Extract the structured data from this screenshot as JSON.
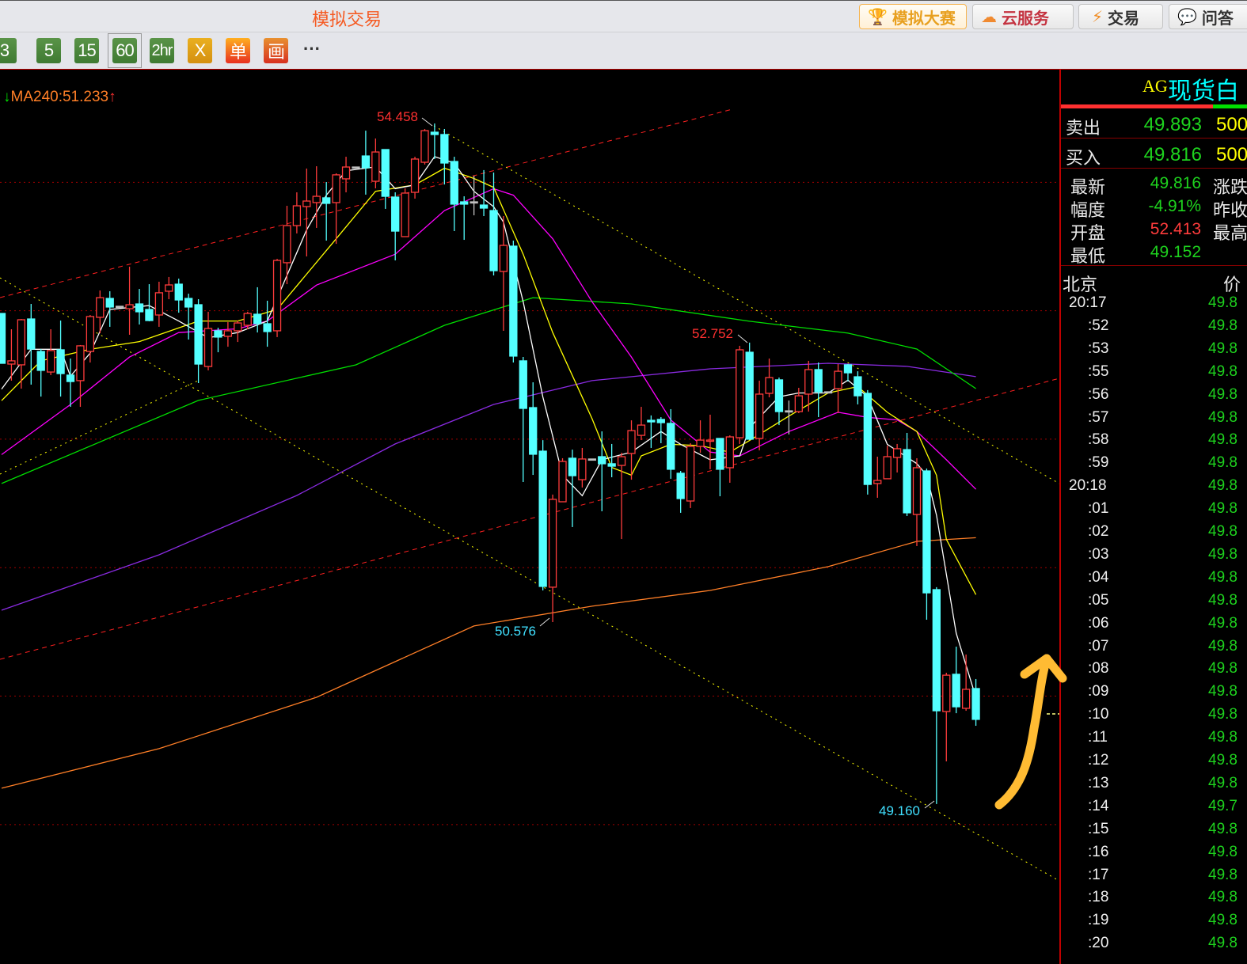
{
  "topbar": {
    "title": "模拟交易",
    "buttons": [
      {
        "label": "模拟大赛",
        "icon": "trophy-icon"
      },
      {
        "label": "云服务",
        "icon": "cloud-icon"
      },
      {
        "label": "交易",
        "icon": "lightning-icon"
      },
      {
        "label": "问答",
        "icon": "chat-icon"
      }
    ]
  },
  "toolbar": {
    "periods": [
      "3",
      "5",
      "15",
      "60",
      "2hr"
    ],
    "selected": "60",
    "tools": [
      "X",
      "单",
      "画"
    ],
    "more": "···"
  },
  "chart": {
    "ma_label": "MA240:51.233",
    "ma_down_arrow": "↓",
    "ma_up_arrow": "↑",
    "annotations": {
      "high": "54.458",
      "high2": "52.752",
      "low1": "50.576",
      "low2": "49.160"
    },
    "colors": {
      "up": "#ff3c3c",
      "down": "#54ffff",
      "ma5": "#ffffff",
      "ma10": "#ffff00",
      "ma20": "#ff00ff",
      "ma60": "#00e000",
      "ma120": "#8a2be2",
      "ma240": "#ff7f27"
    },
    "gridlines": [
      54,
      53,
      52,
      51,
      50,
      49
    ],
    "candles": [
      [
        52.979,
        52.979,
        52.591,
        52.591
      ],
      [
        52.585,
        52.856,
        52.456,
        52.61
      ],
      [
        52.579,
        52.936,
        52.394,
        52.93
      ],
      [
        52.936,
        53.053,
        52.425,
        52.702
      ],
      [
        52.683,
        52.702,
        52.332,
        52.536
      ],
      [
        52.523,
        52.856,
        52.499,
        52.69
      ],
      [
        52.696,
        52.924,
        52.332,
        52.511
      ],
      [
        52.499,
        52.628,
        52.252,
        52.449
      ],
      [
        52.456,
        52.733,
        52.252,
        52.727
      ],
      [
        52.683,
        52.967,
        52.597,
        52.955
      ],
      [
        52.949,
        53.158,
        52.825,
        53.102
      ],
      [
        53.096,
        53.152,
        52.875,
        53.029
      ],
      [
        53.035,
        53.035,
        53.035,
        53.035
      ],
      [
        53.016,
        53.343,
        52.813,
        53.047
      ],
      [
        53.053,
        53.17,
        52.893,
        52.992
      ],
      [
        53.01,
        53.207,
        52.918,
        52.924
      ],
      [
        52.967,
        53.226,
        52.875,
        53.14
      ],
      [
        53.152,
        53.263,
        53.09,
        53.201
      ],
      [
        53.207,
        53.25,
        52.985,
        53.084
      ],
      [
        53.096,
        53.133,
        52.776,
        53.029
      ],
      [
        53.047,
        53.09,
        52.437,
        52.585
      ],
      [
        52.566,
        52.992,
        52.536,
        52.862
      ],
      [
        52.844,
        52.868,
        52.677,
        52.795
      ],
      [
        52.801,
        52.912,
        52.72,
        52.844
      ],
      [
        52.844,
        52.924,
        52.757,
        52.905
      ],
      [
        52.887,
        52.992,
        52.856,
        52.979
      ],
      [
        52.973,
        53.183,
        52.831,
        52.899
      ],
      [
        52.899,
        53.078,
        52.72,
        52.838
      ],
      [
        52.844,
        53.404,
        52.795,
        53.392
      ],
      [
        53.374,
        53.817,
        53.207,
        53.663
      ],
      [
        53.663,
        53.922,
        53.602,
        53.817
      ],
      [
        53.811,
        54.107,
        53.423,
        53.854
      ],
      [
        53.842,
        54.125,
        53.645,
        53.891
      ],
      [
        53.879,
        54.002,
        53.546,
        53.836
      ],
      [
        53.842,
        54.07,
        53.521,
        54.058
      ],
      [
        54.027,
        54.199,
        53.922,
        54.119
      ],
      [
        54.119,
        54.119,
        54.119,
        54.119
      ],
      [
        54.205,
        54.402,
        53.904,
        54.113
      ],
      [
        54.008,
        54.341,
        53.953,
        54.236
      ],
      [
        54.255,
        54.255,
        53.793,
        53.891
      ],
      [
        53.885,
        53.922,
        53.392,
        53.62
      ],
      [
        53.577,
        53.953,
        53.577,
        53.916
      ],
      [
        53.922,
        54.199,
        53.873,
        54.181
      ],
      [
        54.156,
        54.415,
        54.138,
        54.402
      ],
      [
        54.39,
        54.458,
        54.181,
        54.372
      ],
      [
        54.372,
        54.415,
        53.983,
        54.15
      ],
      [
        54.162,
        54.199,
        53.62,
        53.83
      ],
      [
        53.848,
        53.891,
        53.552,
        53.83
      ],
      [
        53.848,
        54.051,
        53.743,
        53.848
      ],
      [
        53.823,
        54.095,
        53.737,
        53.799
      ],
      [
        53.78,
        54.076,
        53.275,
        53.312
      ],
      [
        53.306,
        53.737,
        52.844,
        53.509
      ],
      [
        53.503,
        53.546,
        52.597,
        52.647
      ],
      [
        52.61,
        52.64,
        51.667,
        52.24
      ],
      [
        52.246,
        52.443,
        51.722,
        51.883
      ],
      [
        51.907,
        51.993,
        50.823,
        50.854
      ],
      [
        50.848,
        51.569,
        50.576,
        51.532
      ],
      [
        51.513,
        51.852,
        51.513,
        51.827
      ],
      [
        51.852,
        51.919,
        51.316,
        51.716
      ],
      [
        51.685,
        51.932,
        51.624,
        51.846
      ],
      [
        51.846,
        51.846,
        51.846,
        51.846
      ],
      [
        51.864,
        52.061,
        51.439,
        51.809
      ],
      [
        51.809,
        51.963,
        51.704,
        51.79
      ],
      [
        51.796,
        51.895,
        51.223,
        51.864
      ],
      [
        51.889,
        52.147,
        51.685,
        52.067
      ],
      [
        52.03,
        52.252,
        51.993,
        52.11
      ],
      [
        52.147,
        52.185,
        51.932,
        52.135
      ],
      [
        52.154,
        52.172,
        51.969,
        52.129
      ],
      [
        52.123,
        52.234,
        51.692,
        51.766
      ],
      [
        51.735,
        51.753,
        51.427,
        51.538
      ],
      [
        51.519,
        51.969,
        51.464,
        51.944
      ],
      [
        51.944,
        52.147,
        51.895,
        51.993
      ],
      [
        51.987,
        52.191,
        51.766,
        51.993
      ],
      [
        52.006,
        52.006,
        51.556,
        51.766
      ],
      [
        51.778,
        52.03,
        51.661,
        52.018
      ],
      [
        52.012,
        52.727,
        51.963,
        52.696
      ],
      [
        52.677,
        52.752,
        51.993,
        52.0
      ],
      [
        52.006,
        52.456,
        51.913,
        52.351
      ],
      [
        52.357,
        52.628,
        52.326,
        52.48
      ],
      [
        52.462,
        52.48,
        52.11,
        52.215
      ],
      [
        52.221,
        52.301,
        52.037,
        52.221
      ],
      [
        52.215,
        52.4,
        52.203,
        52.338
      ],
      [
        52.351,
        52.61,
        52.215,
        52.542
      ],
      [
        52.542,
        52.597,
        52.172,
        52.369
      ],
      [
        52.369,
        52.369,
        52.369,
        52.369
      ],
      [
        52.394,
        52.585,
        52.203,
        52.529
      ],
      [
        52.579,
        52.585,
        52.449,
        52.517
      ],
      [
        52.486,
        52.529,
        52.271,
        52.338
      ],
      [
        52.357,
        52.382,
        51.569,
        51.648
      ],
      [
        51.655,
        51.864,
        51.544,
        51.679
      ],
      [
        51.692,
        51.95,
        51.692,
        51.864
      ],
      [
        51.858,
        51.963,
        51.741,
        51.926
      ],
      [
        51.919,
        52.049,
        51.402,
        51.427
      ],
      [
        51.414,
        51.852,
        51.168,
        51.778
      ],
      [
        51.753,
        51.772,
        50.595,
        50.804
      ],
      [
        50.829,
        50.848,
        49.16,
        49.886
      ],
      [
        49.88,
        50.182,
        49.492,
        50.163
      ],
      [
        50.17,
        50.385,
        49.867,
        49.917
      ],
      [
        49.905,
        50.324,
        49.886,
        50.053
      ],
      [
        50.059,
        50.133,
        49.769,
        49.819
      ]
    ],
    "moving_averages": {
      "ma5": [
        [
          0,
          52.39
        ],
        [
          3,
          52.7
        ],
        [
          6,
          52.7
        ],
        [
          7,
          52.49
        ],
        [
          9,
          52.67
        ],
        [
          11,
          53.01
        ],
        [
          15,
          53.04
        ],
        [
          18,
          52.92
        ],
        [
          21,
          52.79
        ],
        [
          24,
          52.83
        ],
        [
          27,
          52.92
        ],
        [
          31,
          53.63
        ],
        [
          33,
          53.9
        ],
        [
          35,
          54.09
        ],
        [
          38,
          54.12
        ],
        [
          40,
          53.95
        ],
        [
          42,
          53.98
        ],
        [
          44,
          54.2
        ],
        [
          46,
          54.15
        ],
        [
          48,
          53.93
        ],
        [
          50,
          53.81
        ],
        [
          51,
          53.69
        ],
        [
          53,
          53.07
        ],
        [
          55,
          52.33
        ],
        [
          57,
          51.72
        ],
        [
          59,
          51.56
        ],
        [
          61,
          51.84
        ],
        [
          64,
          51.9
        ],
        [
          67,
          52.06
        ],
        [
          69,
          51.96
        ],
        [
          72,
          51.84
        ],
        [
          75,
          51.87
        ],
        [
          76,
          52.09
        ],
        [
          79,
          52.33
        ],
        [
          81,
          52.36
        ],
        [
          84,
          52.36
        ],
        [
          86,
          52.46
        ],
        [
          88,
          52.33
        ],
        [
          90,
          51.96
        ],
        [
          93,
          51.81
        ],
        [
          94,
          51.72
        ],
        [
          95,
          51.41
        ],
        [
          97,
          50.49
        ],
        [
          99,
          49.99
        ]
      ],
      "ma10": [
        [
          0,
          52.3
        ],
        [
          4,
          52.61
        ],
        [
          9,
          52.7
        ],
        [
          14,
          52.76
        ],
        [
          20,
          52.92
        ],
        [
          24,
          52.92
        ],
        [
          28,
          53.01
        ],
        [
          34,
          53.56
        ],
        [
          38,
          53.93
        ],
        [
          42,
          53.98
        ],
        [
          45,
          54.11
        ],
        [
          48,
          54.03
        ],
        [
          50,
          53.96
        ],
        [
          53,
          53.44
        ],
        [
          56,
          52.83
        ],
        [
          60,
          52.16
        ],
        [
          62,
          51.78
        ],
        [
          64,
          51.72
        ],
        [
          65,
          51.87
        ],
        [
          68,
          51.96
        ],
        [
          71,
          51.95
        ],
        [
          74,
          51.9
        ],
        [
          76,
          51.99
        ],
        [
          80,
          52.18
        ],
        [
          84,
          52.36
        ],
        [
          87,
          52.41
        ],
        [
          90,
          52.21
        ],
        [
          93,
          52.06
        ],
        [
          95,
          51.72
        ],
        [
          96,
          51.22
        ],
        [
          99,
          50.79
        ]
      ],
      "ma20": [
        [
          0,
          51.88
        ],
        [
          7,
          52.27
        ],
        [
          13,
          52.64
        ],
        [
          18,
          52.83
        ],
        [
          24,
          52.86
        ],
        [
          27,
          52.92
        ],
        [
          32,
          53.2
        ],
        [
          40,
          53.44
        ],
        [
          45,
          53.78
        ],
        [
          50,
          53.95
        ],
        [
          52,
          53.9
        ],
        [
          56,
          53.56
        ],
        [
          60,
          53.07
        ],
        [
          64,
          52.64
        ],
        [
          68,
          52.15
        ],
        [
          72,
          51.9
        ],
        [
          75,
          51.87
        ],
        [
          80,
          52.06
        ],
        [
          85,
          52.21
        ],
        [
          88,
          52.17
        ],
        [
          91,
          52.15
        ],
        [
          93,
          52.06
        ],
        [
          96,
          51.84
        ],
        [
          99,
          51.61
        ]
      ],
      "ma60": [
        [
          0,
          51.655
        ],
        [
          20,
          52.302
        ],
        [
          36,
          52.579
        ],
        [
          45,
          52.887
        ],
        [
          54,
          53.102
        ],
        [
          64,
          53.053
        ],
        [
          76,
          52.918
        ],
        [
          86,
          52.826
        ],
        [
          93,
          52.702
        ],
        [
          99,
          52.394
        ]
      ],
      "ma120": [
        [
          0,
          50.669
        ],
        [
          16,
          51.1
        ],
        [
          30,
          51.562
        ],
        [
          40,
          51.963
        ],
        [
          50,
          52.271
        ],
        [
          60,
          52.456
        ],
        [
          72,
          52.548
        ],
        [
          84,
          52.591
        ],
        [
          92,
          52.567
        ],
        [
          99,
          52.487
        ]
      ],
      "ma240": [
        [
          0,
          49.283
        ],
        [
          16,
          49.591
        ],
        [
          32,
          49.991
        ],
        [
          48,
          50.546
        ],
        [
          60,
          50.7
        ],
        [
          72,
          50.823
        ],
        [
          84,
          51.008
        ],
        [
          93,
          51.205
        ],
        [
          99,
          51.233
        ]
      ]
    }
  },
  "panel": {
    "symbol_code": "AG",
    "symbol_name": "现货白",
    "sell_label": "卖出",
    "sell_price": "49.893",
    "sell_vol": "500",
    "buy_label": "买入",
    "buy_price": "49.816",
    "buy_vol": "500",
    "stats": [
      {
        "label": "最新",
        "value": "49.816",
        "color": "#1ed21e",
        "label2": "涨跌"
      },
      {
        "label": "幅度",
        "value": "-4.91%",
        "color": "#1ed21e",
        "label2": "昨收"
      },
      {
        "label": "开盘",
        "value": "52.413",
        "color": "#ff3c3c",
        "label2": "最高"
      },
      {
        "label": "最低",
        "value": "49.152",
        "color": "#1ed21e",
        "label2": ""
      }
    ],
    "ticks_header_time": "北京",
    "ticks_header_price": "价",
    "ticks": [
      {
        "t": "20:17",
        "p": "49.8"
      },
      {
        "t": ":52",
        "p": "49.8"
      },
      {
        "t": ":53",
        "p": "49.8"
      },
      {
        "t": ":55",
        "p": "49.8"
      },
      {
        "t": ":56",
        "p": "49.8"
      },
      {
        "t": ":57",
        "p": "49.8"
      },
      {
        "t": ":58",
        "p": "49.8"
      },
      {
        "t": ":59",
        "p": "49.8"
      },
      {
        "t": "20:18",
        "p": "49.8"
      },
      {
        "t": ":01",
        "p": "49.8"
      },
      {
        "t": ":02",
        "p": "49.8"
      },
      {
        "t": ":03",
        "p": "49.8"
      },
      {
        "t": ":04",
        "p": "49.8"
      },
      {
        "t": ":05",
        "p": "49.8"
      },
      {
        "t": ":06",
        "p": "49.8"
      },
      {
        "t": ":07",
        "p": "49.8"
      },
      {
        "t": ":08",
        "p": "49.8"
      },
      {
        "t": ":09",
        "p": "49.8"
      },
      {
        "t": ":10",
        "p": "49.8"
      },
      {
        "t": ":11",
        "p": "49.8"
      },
      {
        "t": ":12",
        "p": "49.8"
      },
      {
        "t": ":13",
        "p": "49.8"
      },
      {
        "t": ":14",
        "p": "49.7"
      },
      {
        "t": ":15",
        "p": "49.8"
      },
      {
        "t": ":16",
        "p": "49.8"
      },
      {
        "t": ":17",
        "p": "49.8"
      },
      {
        "t": ":18",
        "p": "49.8"
      },
      {
        "t": ":19",
        "p": "49.8"
      },
      {
        "t": ":20",
        "p": "49.8"
      }
    ]
  }
}
